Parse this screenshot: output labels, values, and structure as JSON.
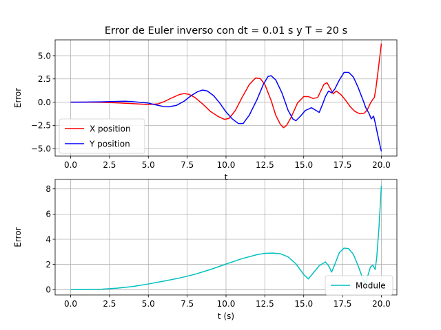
{
  "chart_data": [
    {
      "type": "line",
      "title": "Error de Euler inverso con dt = 0.01 s y T = 20 s",
      "xlabel": "t",
      "ylabel": "Error",
      "xlim": [
        -1.0,
        21.0
      ],
      "ylim": [
        -5.8,
        6.7
      ],
      "xticks": [
        0,
        2.5,
        5,
        7.5,
        10,
        12.5,
        15,
        17.5,
        20
      ],
      "xtick_labels": [
        "0.0",
        "2.5",
        "5.0",
        "7.5",
        "10.0",
        "12.5",
        "15.0",
        "17.5",
        "20.0"
      ],
      "yticks": [
        -5,
        -2.5,
        0,
        2.5,
        5
      ],
      "ytick_labels": [
        "−5.0",
        "−2.5",
        "0.0",
        "2.5",
        "5.0"
      ],
      "grid": true,
      "legend_position": "lower-left",
      "series": [
        {
          "name": "X position",
          "color": "#ff0000",
          "points": [
            [
              0,
              0
            ],
            [
              1,
              0
            ],
            [
              2,
              -0.02
            ],
            [
              3,
              -0.08
            ],
            [
              4,
              -0.16
            ],
            [
              5,
              -0.25
            ],
            [
              5.6,
              -0.2
            ],
            [
              6,
              0.05
            ],
            [
              6.5,
              0.45
            ],
            [
              7,
              0.82
            ],
            [
              7.3,
              0.92
            ],
            [
              7.6,
              0.85
            ],
            [
              8,
              0.5
            ],
            [
              8.5,
              -0.2
            ],
            [
              9,
              -1.0
            ],
            [
              9.5,
              -1.55
            ],
            [
              9.9,
              -1.85
            ],
            [
              10.2,
              -1.75
            ],
            [
              10.6,
              -0.9
            ],
            [
              11,
              0.4
            ],
            [
              11.5,
              1.9
            ],
            [
              11.9,
              2.6
            ],
            [
              12.2,
              2.55
            ],
            [
              12.5,
              1.9
            ],
            [
              12.9,
              0.2
            ],
            [
              13.2,
              -1.4
            ],
            [
              13.5,
              -2.4
            ],
            [
              13.7,
              -2.75
            ],
            [
              13.9,
              -2.5
            ],
            [
              14.2,
              -1.6
            ],
            [
              14.6,
              -0.1
            ],
            [
              15,
              0.6
            ],
            [
              15.3,
              0.6
            ],
            [
              15.6,
              0.4
            ],
            [
              15.9,
              0.5
            ],
            [
              16.1,
              1.2
            ],
            [
              16.3,
              1.9
            ],
            [
              16.5,
              2.1
            ],
            [
              16.7,
              1.5
            ],
            [
              16.9,
              0.9
            ],
            [
              17.1,
              1.2
            ],
            [
              17.4,
              0.8
            ],
            [
              17.7,
              0.2
            ],
            [
              18,
              -0.5
            ],
            [
              18.3,
              -1.0
            ],
            [
              18.6,
              -1.25
            ],
            [
              18.9,
              -1.2
            ],
            [
              19.1,
              -0.8
            ],
            [
              19.3,
              -0.1
            ],
            [
              19.45,
              0.3
            ],
            [
              19.55,
              0.5
            ],
            [
              19.65,
              1.5
            ],
            [
              19.8,
              3.5
            ],
            [
              20,
              6.3
            ]
          ]
        },
        {
          "name": "Y position",
          "color": "#0000ff",
          "points": [
            [
              0,
              0
            ],
            [
              1,
              0.01
            ],
            [
              2,
              0.03
            ],
            [
              3,
              0.08
            ],
            [
              3.5,
              0.1
            ],
            [
              4,
              0.05
            ],
            [
              5,
              -0.1
            ],
            [
              5.5,
              -0.3
            ],
            [
              6,
              -0.48
            ],
            [
              6.3,
              -0.5
            ],
            [
              6.8,
              -0.35
            ],
            [
              7.3,
              0.1
            ],
            [
              7.8,
              0.75
            ],
            [
              8.2,
              1.15
            ],
            [
              8.5,
              1.3
            ],
            [
              8.8,
              1.2
            ],
            [
              9.2,
              0.7
            ],
            [
              9.6,
              -0.1
            ],
            [
              10,
              -1.05
            ],
            [
              10.4,
              -1.8
            ],
            [
              10.8,
              -2.3
            ],
            [
              11.1,
              -2.3
            ],
            [
              11.5,
              -1.4
            ],
            [
              12,
              0.3
            ],
            [
              12.4,
              1.9
            ],
            [
              12.7,
              2.75
            ],
            [
              12.9,
              2.85
            ],
            [
              13.2,
              2.4
            ],
            [
              13.6,
              1.0
            ],
            [
              14,
              -0.9
            ],
            [
              14.3,
              -1.8
            ],
            [
              14.5,
              -2.0
            ],
            [
              14.8,
              -1.5
            ],
            [
              15.1,
              -0.9
            ],
            [
              15.5,
              -0.6
            ],
            [
              15.8,
              -0.9
            ],
            [
              16,
              -1.1
            ],
            [
              16.2,
              -0.3
            ],
            [
              16.4,
              0.6
            ],
            [
              16.6,
              1.2
            ],
            [
              16.8,
              1.0
            ],
            [
              17,
              1.4
            ],
            [
              17.3,
              2.4
            ],
            [
              17.6,
              3.2
            ],
            [
              17.9,
              3.2
            ],
            [
              18.2,
              2.7
            ],
            [
              18.5,
              1.6
            ],
            [
              18.8,
              0.3
            ],
            [
              19,
              -0.6
            ],
            [
              19.2,
              -1.2
            ],
            [
              19.35,
              -1.8
            ],
            [
              19.5,
              -1.5
            ],
            [
              19.6,
              -2.2
            ],
            [
              19.8,
              -3.8
            ],
            [
              20,
              -5.3
            ]
          ]
        }
      ]
    },
    {
      "type": "line",
      "title": "",
      "xlabel": "t (s)",
      "ylabel": "Error",
      "xlim": [
        -1.0,
        21.0
      ],
      "ylim": [
        -0.42,
        8.75
      ],
      "xticks": [
        0,
        2.5,
        5,
        7.5,
        10,
        12.5,
        15,
        17.5,
        20
      ],
      "xtick_labels": [
        "0.0",
        "2.5",
        "5.0",
        "7.5",
        "10.0",
        "12.5",
        "15.0",
        "17.5",
        "20.0"
      ],
      "yticks": [
        0,
        2,
        4,
        6,
        8
      ],
      "ytick_labels": [
        "0",
        "2",
        "4",
        "6",
        "8"
      ],
      "grid": true,
      "legend_position": "lower-right",
      "series": [
        {
          "name": "Module",
          "color": "#00bfbf",
          "points": [
            [
              0,
              0
            ],
            [
              1,
              0.01
            ],
            [
              2,
              0.04
            ],
            [
              3,
              0.12
            ],
            [
              4,
              0.25
            ],
            [
              5,
              0.45
            ],
            [
              6,
              0.68
            ],
            [
              7,
              0.92
            ],
            [
              8,
              1.22
            ],
            [
              9,
              1.6
            ],
            [
              10,
              2.03
            ],
            [
              11,
              2.45
            ],
            [
              12,
              2.78
            ],
            [
              12.5,
              2.88
            ],
            [
              13,
              2.9
            ],
            [
              13.5,
              2.85
            ],
            [
              14,
              2.6
            ],
            [
              14.5,
              2.05
            ],
            [
              15,
              1.2
            ],
            [
              15.3,
              0.85
            ],
            [
              15.6,
              1.3
            ],
            [
              16,
              1.9
            ],
            [
              16.4,
              2.2
            ],
            [
              16.6,
              1.9
            ],
            [
              16.8,
              1.4
            ],
            [
              17,
              2.0
            ],
            [
              17.3,
              2.95
            ],
            [
              17.6,
              3.3
            ],
            [
              17.9,
              3.25
            ],
            [
              18.2,
              2.8
            ],
            [
              18.5,
              1.9
            ],
            [
              18.8,
              0.9
            ],
            [
              19,
              0.4
            ],
            [
              19.1,
              1.0
            ],
            [
              19.3,
              1.8
            ],
            [
              19.45,
              1.95
            ],
            [
              19.6,
              1.6
            ],
            [
              19.7,
              2.5
            ],
            [
              19.85,
              5.0
            ],
            [
              20,
              8.25
            ]
          ]
        }
      ]
    }
  ]
}
